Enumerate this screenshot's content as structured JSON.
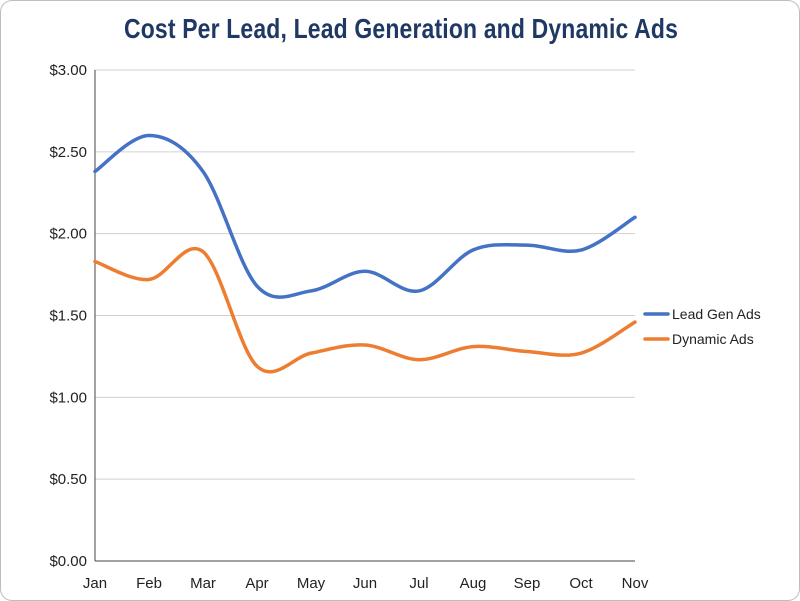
{
  "chart_data": {
    "type": "line",
    "title": "Cost Per Lead, Lead Generation and Dynamic Ads",
    "xlabel": "",
    "ylabel": "",
    "categories": [
      "Jan",
      "Feb",
      "Mar",
      "Apr",
      "May",
      "Jun",
      "Jul",
      "Aug",
      "Sep",
      "Oct",
      "Nov"
    ],
    "ylim": [
      0,
      3
    ],
    "yticks": [
      0,
      0.5,
      1,
      1.5,
      2,
      2.5,
      3
    ],
    "ytick_labels": [
      "$0.00",
      "$0.50",
      "$1.00",
      "$1.50",
      "$2.00",
      "$2.50",
      "$3.00"
    ],
    "grid": true,
    "legend_position": "right",
    "series": [
      {
        "name": "Lead Gen Ads",
        "color": "#4472c4",
        "values": [
          2.38,
          2.6,
          2.38,
          1.68,
          1.65,
          1.77,
          1.65,
          1.9,
          1.93,
          1.9,
          2.1
        ]
      },
      {
        "name": "Dynamic Ads",
        "color": "#ed7d31",
        "values": [
          1.83,
          1.72,
          1.89,
          1.19,
          1.27,
          1.32,
          1.23,
          1.31,
          1.28,
          1.27,
          1.46
        ]
      }
    ]
  }
}
